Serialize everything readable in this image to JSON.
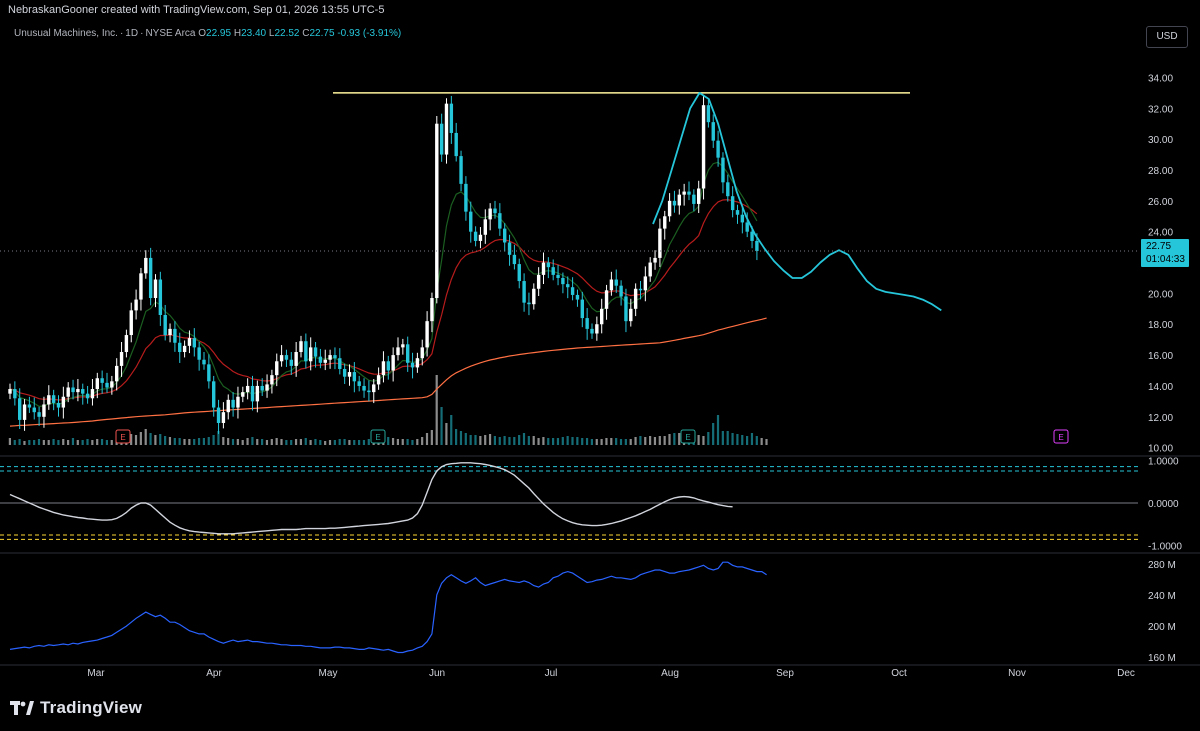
{
  "header": {
    "attribution": "NebraskanGooner created with TradingView.com, Sep 01, 2026 13:55 UTC-5"
  },
  "legend": {
    "symbol_name": "Unusual Machines, Inc.",
    "interval": "1D",
    "exchange": "NYSE Arca",
    "open_label": "O",
    "open": "22.95",
    "high_label": "H",
    "high": "23.40",
    "low_label": "L",
    "low": "22.52",
    "close_label": "C",
    "close": "22.75",
    "change": "-0.93 (-3.91%)"
  },
  "currency": "USD",
  "last_price": {
    "price": "22.75",
    "countdown": "01:04:33"
  },
  "footer": {
    "brand": "TradingView"
  },
  "colors": {
    "up": "#ffffff",
    "down": "#26c6da",
    "ema_short": "#1b5e20",
    "ema_mid": "#b71c1c",
    "sma_long": "#ff7043",
    "resistance": "#fff59d",
    "projection": "#26c6da",
    "oscillator": "#d1d4dc",
    "volume_series": "#2962ff",
    "earnings_past": "#ef5350",
    "earnings_mid": "#26a69a",
    "earnings_future": "#e040fb"
  },
  "chart_data": [
    {
      "type": "candlestick",
      "name": "price",
      "y_ticks": [
        "34.00",
        "32.00",
        "30.00",
        "28.00",
        "26.00",
        "24.00",
        "22.00",
        "20.00",
        "18.00",
        "16.00",
        "14.00",
        "12.00",
        "10.00"
      ],
      "ylim": [
        9.2,
        35.0
      ],
      "x_tick_labels": [
        "Mar",
        "Apr",
        "May",
        "Jun",
        "Jul",
        "Aug",
        "Sep",
        "Oct",
        "Nov",
        "Dec"
      ],
      "resistance_level": 33.0,
      "closes": [
        13.8,
        13.2,
        11.8,
        12.8,
        12.6,
        12.3,
        12.0,
        12.8,
        13.4,
        12.9,
        12.6,
        13.3,
        13.9,
        13.6,
        13.8,
        13.5,
        13.2,
        13.8,
        14.5,
        14.2,
        13.9,
        14.3,
        15.3,
        16.2,
        17.3,
        18.9,
        19.6,
        21.3,
        22.3,
        19.7,
        20.9,
        18.6,
        17.3,
        17.7,
        16.8,
        16.2,
        16.6,
        17.1,
        16.5,
        15.7,
        15.4,
        14.3,
        12.6,
        11.6,
        12.3,
        13.1,
        12.6,
        13.3,
        13.6,
        14.0,
        13.0,
        14.0,
        13.7,
        14.1,
        14.7,
        15.6,
        16.0,
        15.7,
        15.3,
        16.2,
        16.9,
        15.6,
        16.5,
        15.9,
        15.5,
        15.7,
        16.0,
        15.8,
        15.1,
        14.6,
        14.9,
        14.3,
        14.0,
        13.7,
        13.6,
        14.1,
        14.7,
        15.6,
        15.0,
        16.0,
        16.5,
        16.7,
        15.5,
        15.2,
        15.8,
        16.5,
        18.2,
        19.7,
        31.0,
        29.0,
        32.3,
        30.4,
        28.9,
        27.1,
        25.3,
        24.0,
        23.4,
        23.8,
        24.8,
        25.5,
        25.2,
        24.2,
        23.3,
        22.5,
        21.9,
        20.8,
        19.4,
        19.3,
        20.3,
        21.2,
        22.0,
        21.7,
        21.2,
        21.0,
        20.6,
        20.4,
        19.9,
        19.6,
        18.4,
        17.7,
        17.4,
        18.0,
        19.0,
        20.2,
        20.9,
        20.5,
        19.8,
        18.2,
        19.0,
        20.3,
        20.2,
        21.1,
        22.0,
        22.3,
        24.2,
        25.0,
        26.0,
        25.7,
        26.4,
        26.6,
        26.4,
        25.8,
        26.8,
        32.2,
        31.1,
        29.9,
        28.8,
        27.2,
        26.3,
        25.4,
        25.1,
        24.6,
        24.0,
        23.4,
        22.75
      ],
      "sma_long": [
        11.4,
        11.42,
        11.44,
        11.45,
        11.47,
        11.49,
        11.51,
        11.52,
        11.54,
        11.56,
        11.58,
        11.6,
        11.61,
        11.63,
        11.66,
        11.68,
        11.7,
        11.73,
        11.77,
        11.8,
        11.83,
        11.86,
        11.89,
        11.92,
        11.95,
        11.98,
        12.01,
        12.03,
        12.05,
        12.07,
        12.09,
        12.11,
        12.13,
        12.16,
        12.19,
        12.22,
        12.25,
        12.28,
        12.3,
        12.32,
        12.34,
        12.36,
        12.38,
        12.4,
        12.42,
        12.44,
        12.46,
        12.48,
        12.5,
        12.52,
        12.54,
        12.56,
        12.58,
        12.6,
        12.62,
        12.64,
        12.66,
        12.68,
        12.7,
        12.72,
        12.74,
        12.76,
        12.78,
        12.8,
        12.82,
        12.84,
        12.86,
        12.88,
        12.9,
        12.92,
        12.94,
        12.96,
        12.98,
        13.0,
        13.02,
        13.04,
        13.06,
        13.08,
        13.1,
        13.12,
        13.14,
        13.16,
        13.18,
        13.2,
        13.22,
        13.24,
        13.3,
        13.45,
        13.8,
        14.1,
        14.4,
        14.65,
        14.85,
        15.0,
        15.15,
        15.28,
        15.4,
        15.5,
        15.6,
        15.68,
        15.75,
        15.82,
        15.88,
        15.94,
        15.99,
        16.04,
        16.08,
        16.12,
        16.16,
        16.2,
        16.24,
        16.28,
        16.31,
        16.34,
        16.37,
        16.4,
        16.43,
        16.46,
        16.48,
        16.5,
        16.52,
        16.54,
        16.56,
        16.58,
        16.6,
        16.62,
        16.64,
        16.66,
        16.68,
        16.7,
        16.72,
        16.74,
        16.76,
        16.78,
        16.8,
        16.85,
        16.9,
        16.96,
        17.02,
        17.08,
        17.14,
        17.2,
        17.26,
        17.32,
        17.42,
        17.52,
        17.62,
        17.7,
        17.78,
        17.86,
        17.94,
        18.02,
        18.1,
        18.18,
        18.25,
        18.32,
        18.4
      ],
      "projection_start_index": 151,
      "projection": [
        24.5,
        26.0,
        28.0,
        30.0,
        32.0,
        33.0,
        32.6,
        31.0,
        28.8,
        26.6,
        25.0,
        23.8,
        22.9,
        22.1,
        21.5,
        21.0,
        21.0,
        21.4,
        22.0,
        22.5,
        22.8,
        22.5,
        21.6,
        20.8,
        20.3,
        20.1,
        20.0,
        19.9,
        19.8,
        19.6,
        19.3,
        18.9
      ],
      "bar_spacing_px": 4.85
    },
    {
      "type": "histogram",
      "name": "volume",
      "values": [
        7,
        5,
        6,
        4,
        5,
        5,
        6,
        5,
        5,
        6,
        5,
        6,
        5,
        7,
        5,
        5,
        6,
        5,
        6,
        6,
        5,
        5,
        7,
        8,
        9,
        11,
        10,
        13,
        16,
        12,
        10,
        11,
        9,
        8,
        7,
        7,
        6,
        6,
        6,
        7,
        7,
        8,
        10,
        14,
        8,
        7,
        6,
        6,
        5,
        7,
        8,
        6,
        6,
        5,
        6,
        7,
        6,
        5,
        5,
        6,
        6,
        7,
        5,
        6,
        5,
        4,
        5,
        5,
        6,
        6,
        5,
        5,
        5,
        5,
        6,
        6,
        7,
        8,
        8,
        7,
        6,
        6,
        6,
        5,
        6,
        8,
        12,
        15,
        70,
        38,
        22,
        30,
        16,
        14,
        12,
        10,
        10,
        9,
        10,
        11,
        9,
        8,
        9,
        8,
        8,
        10,
        12,
        9,
        9,
        7,
        8,
        7,
        7,
        7,
        8,
        9,
        8,
        8,
        7,
        7,
        6,
        6,
        6,
        7,
        7,
        7,
        6,
        6,
        6,
        8,
        9,
        8,
        9,
        8,
        9,
        9,
        11,
        12,
        12,
        10,
        9,
        8,
        10,
        9,
        13,
        22,
        30,
        14,
        14,
        12,
        11,
        10,
        9,
        12,
        9,
        7,
        6
      ]
    },
    {
      "type": "line",
      "name": "oscillator",
      "y_ticks": [
        "1.0000",
        "0.0000",
        "-1.0000"
      ],
      "ylim": [
        -1.1,
        1.1
      ],
      "levels": [
        0.85,
        0.75,
        0.0,
        -0.75,
        -0.85
      ],
      "values": [
        0.2,
        0.15,
        0.1,
        0.05,
        0.0,
        -0.05,
        -0.1,
        -0.14,
        -0.18,
        -0.22,
        -0.25,
        -0.28,
        -0.3,
        -0.32,
        -0.34,
        -0.35,
        -0.37,
        -0.38,
        -0.39,
        -0.4,
        -0.4,
        -0.39,
        -0.36,
        -0.3,
        -0.22,
        -0.12,
        -0.05,
        0.0,
        0.0,
        -0.05,
        -0.15,
        -0.25,
        -0.35,
        -0.45,
        -0.52,
        -0.58,
        -0.62,
        -0.65,
        -0.67,
        -0.68,
        -0.69,
        -0.7,
        -0.71,
        -0.72,
        -0.72,
        -0.72,
        -0.72,
        -0.71,
        -0.7,
        -0.69,
        -0.68,
        -0.67,
        -0.66,
        -0.65,
        -0.64,
        -0.63,
        -0.62,
        -0.62,
        -0.62,
        -0.62,
        -0.61,
        -0.6,
        -0.6,
        -0.6,
        -0.6,
        -0.6,
        -0.59,
        -0.59,
        -0.58,
        -0.57,
        -0.56,
        -0.55,
        -0.54,
        -0.53,
        -0.52,
        -0.51,
        -0.5,
        -0.49,
        -0.48,
        -0.46,
        -0.44,
        -0.42,
        -0.4,
        -0.35,
        -0.25,
        -0.05,
        0.25,
        0.55,
        0.75,
        0.85,
        0.9,
        0.92,
        0.93,
        0.94,
        0.94,
        0.94,
        0.93,
        0.92,
        0.9,
        0.88,
        0.85,
        0.82,
        0.78,
        0.72,
        0.65,
        0.55,
        0.45,
        0.35,
        0.22,
        0.1,
        -0.02,
        -0.12,
        -0.22,
        -0.3,
        -0.37,
        -0.42,
        -0.46,
        -0.49,
        -0.51,
        -0.52,
        -0.53,
        -0.53,
        -0.52,
        -0.5,
        -0.48,
        -0.45,
        -0.42,
        -0.38,
        -0.34,
        -0.3,
        -0.25,
        -0.2,
        -0.15,
        -0.09,
        -0.03,
        0.03,
        0.08,
        0.12,
        0.14,
        0.15,
        0.14,
        0.12,
        0.08,
        0.05,
        0.02,
        -0.01,
        -0.04,
        -0.06,
        -0.08,
        -0.09
      ]
    },
    {
      "type": "line",
      "name": "volume-cumulative",
      "y_ticks": [
        "280 M",
        "240 M",
        "200 M",
        "160 M"
      ],
      "ylim": [
        150,
        290
      ],
      "values": [
        170,
        171,
        172,
        173,
        172,
        174,
        175,
        174,
        176,
        175,
        176,
        177,
        176,
        178,
        177,
        179,
        180,
        181,
        182,
        184,
        186,
        188,
        192,
        196,
        200,
        205,
        210,
        214,
        218,
        215,
        212,
        214,
        210,
        205,
        205,
        202,
        198,
        194,
        192,
        190,
        190,
        186,
        183,
        180,
        178,
        180,
        182,
        180,
        181,
        182,
        180,
        180,
        179,
        178,
        178,
        177,
        176,
        176,
        175,
        175,
        175,
        174,
        174,
        173,
        172,
        172,
        172,
        173,
        173,
        172,
        172,
        171,
        170,
        170,
        172,
        171,
        170,
        169,
        170,
        168,
        166,
        166,
        168,
        169,
        172,
        174,
        180,
        190,
        240,
        255,
        262,
        266,
        262,
        258,
        255,
        258,
        262,
        256,
        252,
        254,
        256,
        258,
        260,
        258,
        257,
        256,
        258,
        256,
        252,
        250,
        254,
        256,
        262,
        264,
        268,
        270,
        268,
        264,
        260,
        256,
        257,
        259,
        260,
        262,
        264,
        262,
        262,
        261,
        260,
        262,
        266,
        268,
        270,
        272,
        272,
        270,
        268,
        268,
        270,
        271,
        272,
        274,
        276,
        278,
        274,
        272,
        274,
        282,
        282,
        278,
        276,
        276,
        274,
        272,
        270,
        270,
        266
      ]
    }
  ]
}
